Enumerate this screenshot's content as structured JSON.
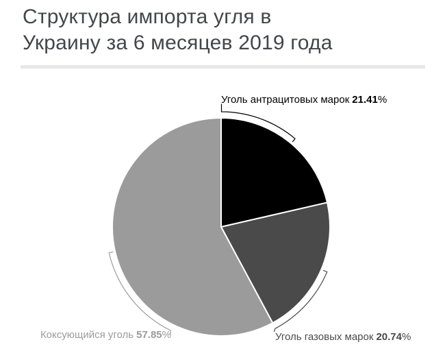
{
  "title": {
    "line1": "Структура импорта угля в",
    "line2": "Украину за 6 месяцев 2019 года"
  },
  "chart_data": {
    "type": "pie",
    "title": "Структура импорта угля в Украину за 6 месяцев 2019 года",
    "direction": "clockwise",
    "start_angle_deg": 0,
    "legend_position": "none",
    "slices": [
      {
        "id": "anthracite",
        "label": "Уголь антрацитовых марок",
        "value_pct": 21.41,
        "color": "#000000"
      },
      {
        "id": "gas",
        "label": "Уголь газовых марок",
        "value_pct": 20.74,
        "color": "#4a4a4a"
      },
      {
        "id": "coking",
        "label": "Коксующийся уголь",
        "value_pct": 57.85,
        "color": "#9b9b9b"
      }
    ]
  },
  "labels": {
    "anthracite": {
      "category": "Уголь антрацитовых марок",
      "value": "21.41",
      "suffix": "%"
    },
    "gas": {
      "category": "Уголь газовых марок",
      "value": "20.74",
      "suffix": "%"
    },
    "coking": {
      "category": "Коксующийся уголь",
      "value": "57.85",
      "suffix": "%"
    }
  },
  "colors": {
    "title": "#43464b",
    "divider": "#e7e7e7",
    "background": "#ffffff",
    "slice_separator": "#ffffff"
  }
}
